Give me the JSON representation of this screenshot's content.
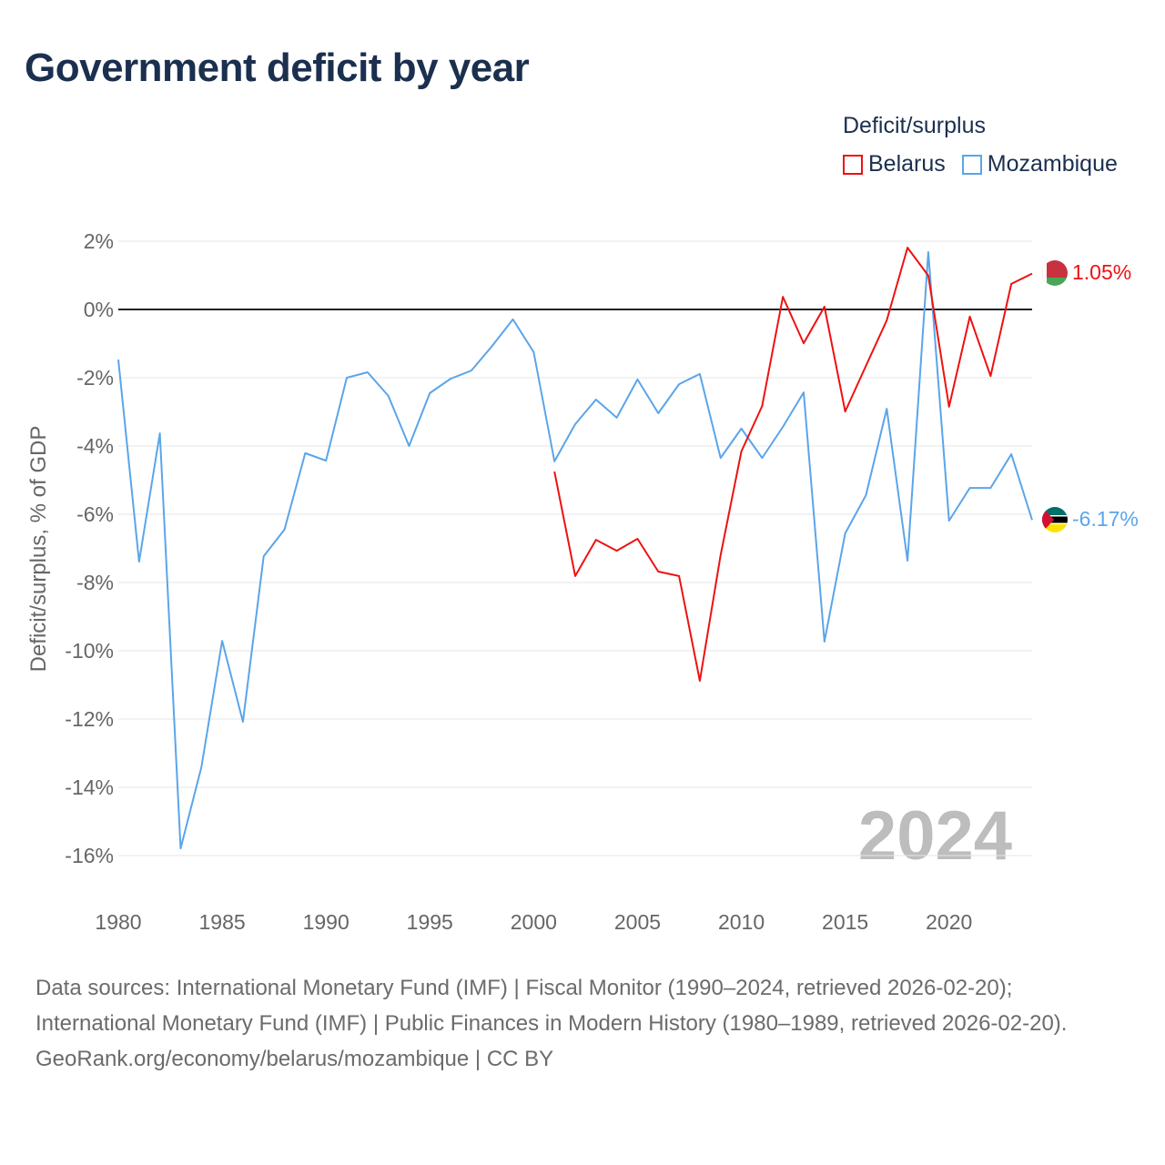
{
  "header": {
    "title": "Government deficit by year"
  },
  "legend": {
    "title": "Deficit/surplus",
    "items": [
      {
        "name": "Belarus",
        "color": "#ee1111"
      },
      {
        "name": "Mozambique",
        "color": "#5aa5ea"
      }
    ]
  },
  "footer": {
    "sources": "Data sources: International Monetary Fund (IMF) | Fiscal Monitor (1990–2024, retrieved 2026-02-20); International Monetary Fund (IMF) | Public Finances in Modern History (1980–1989, retrieved 2026-02-20).",
    "credit": "GeoRank.org/economy/belarus/mozambique | CC BY"
  },
  "chart_data": {
    "type": "line",
    "title": "Government deficit by year",
    "ylabel": "Deficit/surplus, % of GDP",
    "xlabel": "",
    "xlim": [
      1980,
      2024
    ],
    "ylim": [
      -17.5,
      2.5
    ],
    "yticks": [
      2,
      0,
      -2,
      -4,
      -6,
      -8,
      -10,
      -12,
      -14,
      -16
    ],
    "ytick_labels": [
      "2%",
      "0%",
      "-2%",
      "-4%",
      "-6%",
      "-8%",
      "-10%",
      "-12%",
      "-14%",
      "-16%"
    ],
    "xticks": [
      1980,
      1985,
      1990,
      1995,
      2000,
      2005,
      2010,
      2015,
      2020
    ],
    "xtick_labels": [
      "1980",
      "1985",
      "1990",
      "1995",
      "2000",
      "2005",
      "2010",
      "2015",
      "2020"
    ],
    "year_watermark": "2024",
    "series": [
      {
        "name": "Belarus",
        "color": "#ee1111",
        "end_label": "1.05%",
        "start_year": 2001,
        "values": [
          -4.75,
          -7.81,
          -6.75,
          -7.07,
          -6.72,
          -7.68,
          -7.81,
          -10.88,
          -7.2,
          -4.16,
          -2.83,
          0.37,
          -0.99,
          0.08,
          -2.99,
          -1.65,
          -0.32,
          1.81,
          0.99,
          -2.85,
          -0.21,
          -1.95,
          0.75,
          1.05
        ]
      },
      {
        "name": "Mozambique",
        "color": "#5aa5ea",
        "end_label": "-6.17%",
        "start_year": 1980,
        "values": [
          -1.47,
          -7.39,
          -3.63,
          -15.79,
          -13.41,
          -9.71,
          -12.08,
          -7.23,
          -6.45,
          -4.21,
          -4.43,
          -2.0,
          -1.84,
          -2.53,
          -4.0,
          -2.45,
          -2.03,
          -1.79,
          -1.07,
          -0.29,
          -1.25,
          -4.45,
          -3.36,
          -2.64,
          -3.17,
          -2.05,
          -3.04,
          -2.19,
          -1.89,
          -4.35,
          -3.49,
          -4.35,
          -3.44,
          -2.43,
          -9.73,
          -6.56,
          -5.44,
          -2.91,
          -7.36,
          1.68,
          -6.19,
          -5.23,
          -5.23,
          -4.24,
          -6.17
        ]
      }
    ]
  }
}
